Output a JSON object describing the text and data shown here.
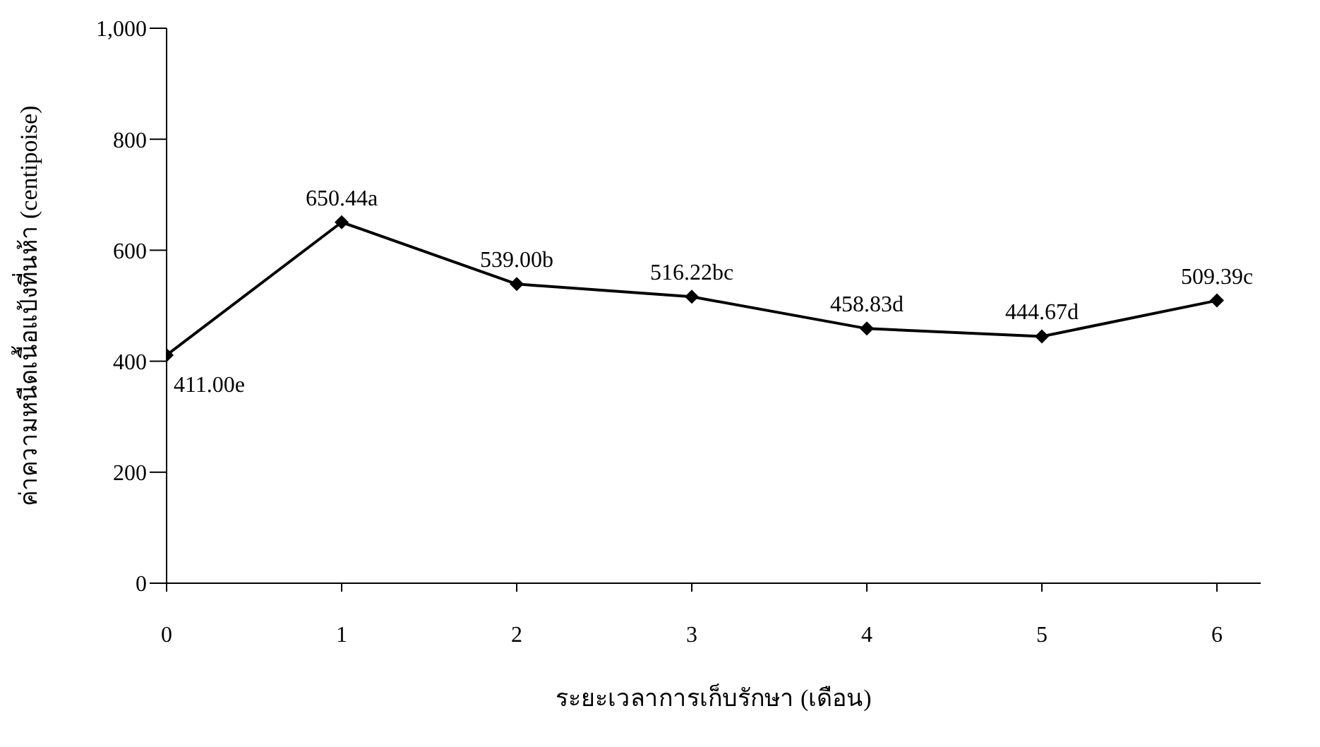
{
  "chart_data": {
    "type": "line",
    "xlabel": "ระยะเวลาการเก็บรักษา (เดือน)",
    "ylabel": "ค่าความหนืดเนื้อแป้งที่นห้า (centipoise)",
    "x": [
      0,
      1,
      2,
      3,
      4,
      5,
      6
    ],
    "series": [
      {
        "color": "#000000",
        "values": [
          411.0,
          650.44,
          539.0,
          516.22,
          458.83,
          444.67,
          509.39
        ],
        "value_labels": [
          "411.00e",
          "650.44a",
          "539.00b",
          "516.22bc",
          "458.83d",
          "444.67d",
          "509.39c"
        ]
      }
    ],
    "xlim": [
      0,
      6.25
    ],
    "xticks": [
      0,
      1,
      2,
      3,
      4,
      5,
      6
    ],
    "ylim": [
      0,
      1000
    ],
    "yticks": [
      0,
      200,
      400,
      600,
      800,
      {
        "value": 1000,
        "label": "1,000"
      }
    ],
    "grid": false,
    "legend": false,
    "marker": "diamond",
    "line_style": "solid"
  }
}
